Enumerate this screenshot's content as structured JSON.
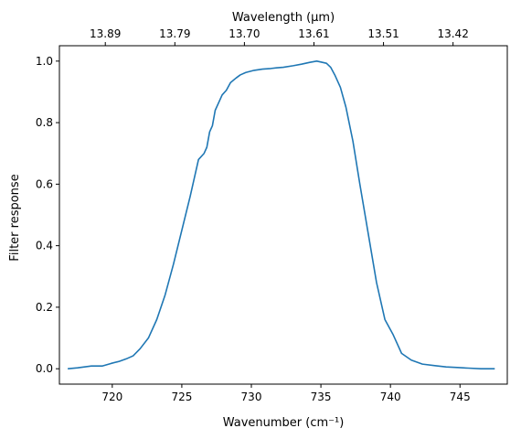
{
  "chart_data": {
    "type": "line",
    "xlabel": "Wavenumber (cm⁻¹)",
    "ylabel": "Filter response",
    "top_xlabel": "Wavelength (μm)",
    "xlim": [
      716.2,
      748.4
    ],
    "ylim": [
      -0.05,
      1.05
    ],
    "x_ticks": [
      720,
      725,
      730,
      735,
      740,
      745
    ],
    "y_ticks": [
      0.0,
      0.2,
      0.4,
      0.6,
      0.8,
      1.0
    ],
    "y_tick_labels": [
      "0.0",
      "0.2",
      "0.4",
      "0.6",
      "0.8",
      "1.0"
    ],
    "top_ticks": [
      {
        "at": 719.5,
        "label": "13.89"
      },
      {
        "at": 724.5,
        "label": "13.79"
      },
      {
        "at": 729.5,
        "label": "13.70"
      },
      {
        "at": 734.5,
        "label": "13.61"
      },
      {
        "at": 739.5,
        "label": "13.51"
      },
      {
        "at": 744.5,
        "label": "13.42"
      }
    ],
    "grid": false,
    "series": [
      {
        "color": "#1f77b4",
        "x": [
          716.8,
          717.5,
          718.5,
          719.3,
          719.9,
          720.5,
          721.0,
          721.5,
          722.0,
          722.6,
          723.2,
          723.8,
          724.4,
          725.0,
          725.6,
          726.2,
          726.6,
          726.8,
          727.0,
          727.2,
          727.4,
          727.7,
          727.9,
          728.2,
          728.5,
          728.9,
          729.2,
          729.6,
          730.2,
          730.8,
          731.4,
          731.8,
          732.3,
          733.0,
          733.6,
          734.2,
          734.7,
          735.0,
          735.4,
          735.7,
          736.0,
          736.4,
          736.8,
          737.3,
          737.8,
          738.4,
          739.0,
          739.6,
          740.2,
          740.8,
          741.5,
          742.3,
          743.2,
          744.0,
          744.8,
          745.6,
          746.5,
          747.5
        ],
        "y": [
          0.0,
          0.003,
          0.009,
          0.009,
          0.017,
          0.024,
          0.032,
          0.042,
          0.065,
          0.1,
          0.16,
          0.24,
          0.34,
          0.45,
          0.56,
          0.68,
          0.7,
          0.72,
          0.77,
          0.79,
          0.84,
          0.87,
          0.89,
          0.905,
          0.93,
          0.945,
          0.955,
          0.963,
          0.97,
          0.974,
          0.976,
          0.978,
          0.98,
          0.985,
          0.99,
          0.996,
          1.0,
          0.997,
          0.993,
          0.98,
          0.955,
          0.915,
          0.85,
          0.74,
          0.6,
          0.44,
          0.28,
          0.16,
          0.11,
          0.05,
          0.028,
          0.015,
          0.01,
          0.006,
          0.004,
          0.002,
          0.0,
          0.0
        ]
      }
    ]
  }
}
